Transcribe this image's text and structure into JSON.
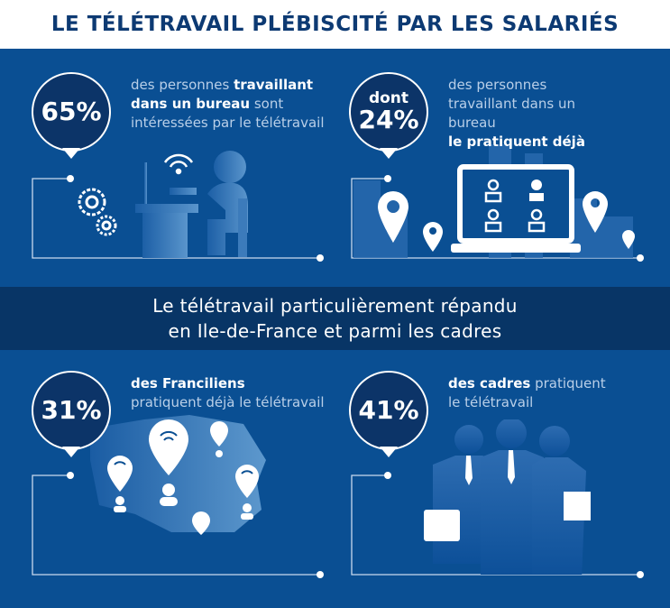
{
  "title": "LE TÉLÉTRAVAIL PLÉBISCITÉ PAR LES SALARIÉS",
  "banner": {
    "line1": "Le télétravail particulièrement répandu",
    "line2": "en Ile-de-France et parmi les cadres"
  },
  "panels": [
    {
      "pct": "65%",
      "t1": "des personnes ",
      "b1": "travaillant dans un bureau",
      "t2": " sont intéressées par le télétravail"
    },
    {
      "pre": "dont",
      "pct": "24%",
      "t1": "des personnes travaillant dans un bureau",
      "b1": "le pratiquent déjà"
    },
    {
      "pct": "31%",
      "b1": "des Franciliens",
      "t2": "pratiquent déjà le télétravail"
    },
    {
      "pct": "41%",
      "b1": "des cadres",
      "t2": " pratiquent le télétravail"
    }
  ],
  "colors": {
    "background": "#0a4f93",
    "banner": "#083566",
    "bubble": "#0c3468",
    "title": "#0d3a73"
  }
}
